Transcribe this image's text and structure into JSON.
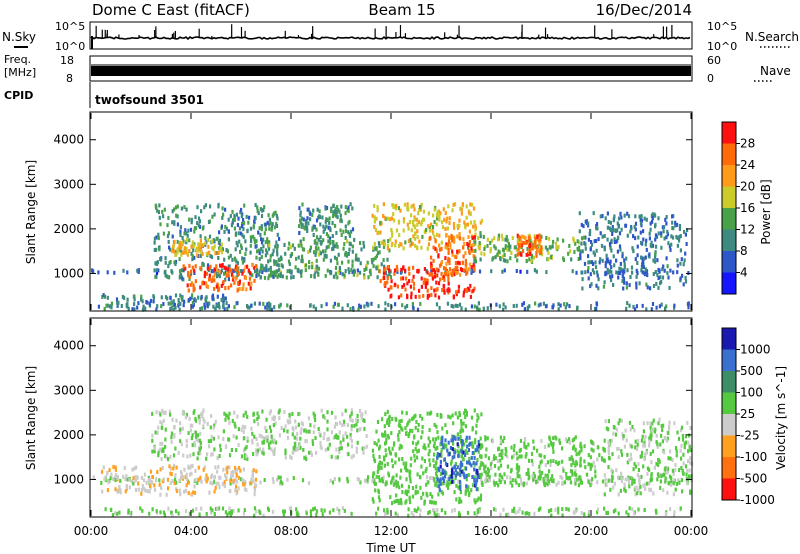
{
  "header": {
    "station": "Dome C East (fitACF)",
    "beam": "Beam 15",
    "date": "16/Dec/2014"
  },
  "left_labels": {
    "nsky": "N.Sky",
    "freq_line1": "Freq.",
    "freq_line2": "[MHz]",
    "cpid": "CPID"
  },
  "right_labels": {
    "nsearch": "N.Search",
    "nave": "Nave"
  },
  "ticks": {
    "noise": [
      "10^5",
      "10^0"
    ],
    "freq": [
      "18",
      "8"
    ],
    "nave": [
      "60",
      "0"
    ]
  },
  "cpid_text": "twofsound 3501",
  "x_axis": {
    "label": "Time UT",
    "ticks": [
      "00:00",
      "04:00",
      "08:00",
      "12:00",
      "16:00",
      "20:00",
      "00:00"
    ]
  },
  "chart_data": [
    {
      "type": "heatmap",
      "title": "",
      "xlabel": "Time UT",
      "ylabel": "Slant Range [km]",
      "xlim": [
        0,
        24
      ],
      "ylim": [
        180,
        4600
      ],
      "yticks": [
        "1000",
        "2000",
        "3000",
        "4000"
      ],
      "colorbar": {
        "label": "Power [dB]",
        "ticks": [
          "4",
          "8",
          "12",
          "16",
          "20",
          "24",
          "28"
        ],
        "range": [
          0,
          30
        ],
        "colors": [
          "#1515ff",
          "#2d57c8",
          "#3c8a80",
          "#49a24a",
          "#c9cc2b",
          "#ff9a1a",
          "#ff6a0a",
          "#ff1010"
        ]
      },
      "features": [
        {
          "t0": 0.0,
          "t1": 24.0,
          "r0": 1050,
          "r1": 1120,
          "v": 7
        },
        {
          "t0": 0.4,
          "t1": 5.5,
          "r0": 300,
          "r1": 560,
          "v": 9
        },
        {
          "t0": 2.5,
          "t1": 7.5,
          "r0": 900,
          "r1": 2600,
          "v": 10
        },
        {
          "t0": 3.6,
          "t1": 6.6,
          "r0": 650,
          "r1": 1250,
          "v": 25
        },
        {
          "t0": 3.2,
          "t1": 5.2,
          "r0": 1450,
          "r1": 1800,
          "v": 19
        },
        {
          "t0": 8.2,
          "t1": 10.5,
          "r0": 1700,
          "r1": 2600,
          "v": 10
        },
        {
          "t0": 7.0,
          "t1": 12.0,
          "r0": 950,
          "r1": 1800,
          "v": 12
        },
        {
          "t0": 11.2,
          "t1": 15.6,
          "r0": 1600,
          "r1": 2600,
          "v": 18
        },
        {
          "t0": 11.5,
          "t1": 15.3,
          "r0": 500,
          "r1": 1200,
          "v": 26
        },
        {
          "t0": 13.5,
          "t1": 15.3,
          "r0": 1000,
          "r1": 1900,
          "v": 24
        },
        {
          "t0": 15.3,
          "t1": 19.5,
          "r0": 1300,
          "r1": 1900,
          "v": 14
        },
        {
          "t0": 17.0,
          "t1": 18.0,
          "r0": 1400,
          "r1": 1900,
          "v": 24
        },
        {
          "t0": 19.5,
          "t1": 23.8,
          "r0": 700,
          "r1": 2400,
          "v": 8
        },
        {
          "t0": 0.0,
          "t1": 24.0,
          "r0": 230,
          "r1": 380,
          "v": 9
        }
      ]
    },
    {
      "type": "heatmap",
      "title": "",
      "xlabel": "Time UT",
      "ylabel": "Slant Range [km]",
      "xlim": [
        0,
        24
      ],
      "ylim": [
        180,
        4600
      ],
      "yticks": [
        "1000",
        "2000",
        "3000",
        "4000"
      ],
      "colorbar": {
        "label": "Velocity [m s^-1]",
        "ticks": [
          "1000",
          "500",
          "100",
          "25",
          "-25",
          "-100",
          "-500",
          "-1000"
        ],
        "range": [
          -1200,
          1200
        ],
        "colors": [
          "#1a1ab0",
          "#3a70d0",
          "#3d8e68",
          "#55c940",
          "#cccccc",
          "#ffa020",
          "#ff7010",
          "#ff1010"
        ]
      },
      "features": [
        {
          "t0": 0.0,
          "t1": 24.0,
          "r0": 950,
          "r1": 1100,
          "v": 0
        },
        {
          "t0": 0.4,
          "t1": 6.6,
          "r0": 700,
          "r1": 1350,
          "v": -250
        },
        {
          "t0": 2.4,
          "t1": 11.0,
          "r0": 1500,
          "r1": 2600,
          "v": 0
        },
        {
          "t0": 11.2,
          "t1": 15.6,
          "r0": 500,
          "r1": 2600,
          "v": 150
        },
        {
          "t0": 13.8,
          "t1": 15.5,
          "r0": 800,
          "r1": 2000,
          "v": 800
        },
        {
          "t0": 15.5,
          "t1": 20.5,
          "r0": 900,
          "r1": 2000,
          "v": 120
        },
        {
          "t0": 20.5,
          "t1": 24.0,
          "r0": 700,
          "r1": 2400,
          "v": 20
        },
        {
          "t0": 0.0,
          "t1": 24.0,
          "r0": 230,
          "r1": 400,
          "v": 60
        }
      ]
    }
  ]
}
